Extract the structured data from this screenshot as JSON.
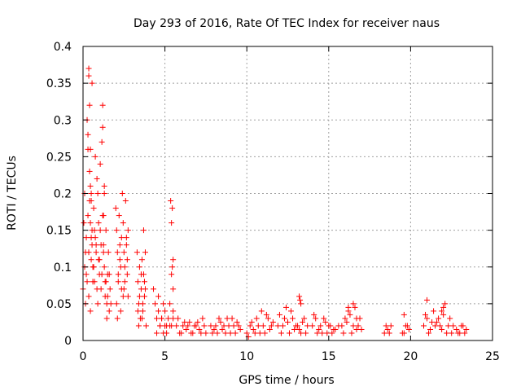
{
  "chart_data": {
    "type": "scatter",
    "title": "Day 293 of 2016, Rate Of TEC Index for receiver naus",
    "xlabel": "GPS time / hours",
    "ylabel": "ROTI / TECUs",
    "xlim": [
      0,
      25
    ],
    "ylim": [
      0,
      0.4
    ],
    "x_ticks": [
      0,
      5,
      10,
      15,
      20,
      25
    ],
    "x_tick_labels": [
      "0",
      "5",
      "10",
      "15",
      "20",
      "25"
    ],
    "y_ticks": [
      0,
      0.05,
      0.1,
      0.15,
      0.2,
      0.25,
      0.3,
      0.35,
      0.4
    ],
    "y_tick_labels": [
      "0",
      "0.05",
      "0.1",
      "0.15",
      "0.2",
      "0.25",
      "0.3",
      "0.35",
      "0.4"
    ],
    "grid": true,
    "marker": "plus",
    "marker_color": "#ff0000",
    "series": [
      {
        "x": [
          0.0,
          0.05,
          0.1,
          0.15,
          0.2,
          0.25,
          0.3,
          0.35,
          0.4,
          0.45,
          0.5,
          0.55,
          0.6,
          0.65,
          0.7,
          0.75,
          0.8,
          0.85,
          0.9,
          0.95,
          1.0,
          1.05,
          1.1,
          1.15,
          1.2,
          1.25,
          1.3,
          1.35,
          1.4,
          1.45,
          1.5,
          1.55,
          1.6,
          1.65,
          1.7,
          0.1,
          0.2,
          0.3,
          0.4,
          0.5,
          0.6,
          0.7,
          0.8,
          0.9,
          1.0,
          1.1,
          1.2,
          1.3,
          1.4,
          1.5,
          1.6,
          0.15,
          0.25,
          0.35,
          0.45,
          0.55,
          0.65,
          0.75,
          0.85,
          0.95,
          1.05,
          1.15,
          1.25,
          1.35,
          1.45,
          0.3,
          0.35,
          0.4,
          0.5,
          1.2,
          1.3,
          0.45,
          0.5,
          0.55,
          1.25,
          0.35,
          0.45,
          2.0,
          2.05,
          2.1,
          2.15,
          2.2,
          2.25,
          2.3,
          2.35,
          2.4,
          2.45,
          2.5,
          2.55,
          2.6,
          2.65,
          2.7,
          2.75,
          2.05,
          2.15,
          2.25,
          2.35,
          2.45,
          2.55,
          2.65,
          2.75,
          2.1,
          2.3,
          2.5,
          2.7,
          3.3,
          3.35,
          3.4,
          3.45,
          3.5,
          3.55,
          3.6,
          3.65,
          3.7,
          3.75,
          3.8,
          3.85,
          3.35,
          3.45,
          3.55,
          3.65,
          3.75,
          3.4,
          3.6,
          3.8,
          3.7,
          4.3,
          4.4,
          4.5,
          4.6,
          4.7,
          4.8,
          4.9,
          5.0,
          5.1,
          5.2,
          5.3,
          5.4,
          5.5,
          4.5,
          4.7,
          4.9,
          5.1,
          5.3,
          5.5,
          4.6,
          4.8,
          5.0,
          5.35,
          5.4,
          5.45,
          5.4,
          5.45,
          5.5,
          5.5,
          5.7,
          5.9,
          6.1,
          6.3,
          6.5,
          6.7,
          6.9,
          7.1,
          7.3,
          7.5,
          5.8,
          6.0,
          6.2,
          6.4,
          6.6,
          6.8,
          7.0,
          7.2,
          7.4,
          7.8,
          8.0,
          8.2,
          8.4,
          8.6,
          8.8,
          9.0,
          9.2,
          9.4,
          9.6,
          7.9,
          8.1,
          8.3,
          8.5,
          8.7,
          8.9,
          9.1,
          9.3,
          9.5,
          10.0,
          10.2,
          10.4,
          10.6,
          10.8,
          11.0,
          11.2,
          11.4,
          11.6,
          10.1,
          10.3,
          10.5,
          10.7,
          10.9,
          11.1,
          11.3,
          11.5,
          11.9,
          12.1,
          12.3,
          12.5,
          12.7,
          12.9,
          13.1,
          13.3,
          13.5,
          13.7,
          12.0,
          12.2,
          12.4,
          12.6,
          12.8,
          13.0,
          13.2,
          13.4,
          13.6,
          13.2,
          13.25,
          13.3,
          14.0,
          14.2,
          14.4,
          14.6,
          14.8,
          15.0,
          15.2,
          15.4,
          15.6,
          14.1,
          14.3,
          14.5,
          14.7,
          14.9,
          15.1,
          15.3,
          15.8,
          16.0,
          16.2,
          16.4,
          16.6,
          16.8,
          17.0,
          15.9,
          16.1,
          16.3,
          16.5,
          16.7,
          16.9,
          16.2,
          16.5,
          16.7,
          18.4,
          18.6,
          18.8,
          18.5,
          18.7,
          19.5,
          19.7,
          19.9,
          19.6,
          19.8,
          19.6,
          20.8,
          21.0,
          21.2,
          21.4,
          21.6,
          21.8,
          22.0,
          22.2,
          22.4,
          22.6,
          20.9,
          21.1,
          21.3,
          21.5,
          21.7,
          21.9,
          22.1,
          22.3,
          22.5,
          21.0,
          21.9,
          22.0,
          22.8,
          23.0,
          23.2,
          23.4,
          22.9,
          23.1,
          23.3
        ],
        "y": [
          0.07,
          0.16,
          0.2,
          0.12,
          0.09,
          0.3,
          0.26,
          0.37,
          0.32,
          0.21,
          0.14,
          0.35,
          0.1,
          0.18,
          0.08,
          0.25,
          0.13,
          0.22,
          0.05,
          0.16,
          0.11,
          0.24,
          0.07,
          0.27,
          0.32,
          0.13,
          0.2,
          0.06,
          0.15,
          0.03,
          0.09,
          0.12,
          0.04,
          0.07,
          0.05,
          0.1,
          0.14,
          0.17,
          0.19,
          0.11,
          0.08,
          0.15,
          0.12,
          0.2,
          0.09,
          0.13,
          0.17,
          0.1,
          0.08,
          0.06,
          0.09,
          0.05,
          0.08,
          0.12,
          0.16,
          0.13,
          0.1,
          0.14,
          0.07,
          0.11,
          0.15,
          0.09,
          0.12,
          0.08,
          0.05,
          0.28,
          0.36,
          0.23,
          0.19,
          0.29,
          0.21,
          0.26,
          0.2,
          0.15,
          0.17,
          0.06,
          0.04,
          0.18,
          0.15,
          0.12,
          0.09,
          0.17,
          0.13,
          0.1,
          0.07,
          0.2,
          0.16,
          0.12,
          0.08,
          0.19,
          0.14,
          0.11,
          0.06,
          0.05,
          0.08,
          0.11,
          0.14,
          0.06,
          0.1,
          0.13,
          0.15,
          0.03,
          0.04,
          0.07,
          0.09,
          0.12,
          0.08,
          0.05,
          0.1,
          0.03,
          0.07,
          0.11,
          0.04,
          0.09,
          0.06,
          0.12,
          0.02,
          0.04,
          0.06,
          0.09,
          0.05,
          0.08,
          0.02,
          0.03,
          0.07,
          0.15,
          0.07,
          0.05,
          0.03,
          0.04,
          0.02,
          0.03,
          0.01,
          0.04,
          0.02,
          0.03,
          0.05,
          0.02,
          0.03,
          0.01,
          0.02,
          0.05,
          0.01,
          0.02,
          0.04,
          0.06,
          0.03,
          0.02,
          0.19,
          0.16,
          0.18,
          0.09,
          0.1,
          0.07,
          0.11,
          0.02,
          0.01,
          0.02,
          0.015,
          0.025,
          0.01,
          0.02,
          0.015,
          0.03,
          0.01,
          0.03,
          0.01,
          0.025,
          0.02,
          0.01,
          0.02,
          0.025,
          0.01,
          0.02,
          0.02,
          0.015,
          0.01,
          0.025,
          0.02,
          0.03,
          0.01,
          0.02,
          0.025,
          0.015,
          0.01,
          0.02,
          0.03,
          0.015,
          0.01,
          0.02,
          0.03,
          0.01,
          0.02,
          0.01,
          0.02,
          0.015,
          0.03,
          0.01,
          0.02,
          0.035,
          0.015,
          0.025,
          0.005,
          0.025,
          0.01,
          0.02,
          0.04,
          0.01,
          0.03,
          0.02,
          0.02,
          0.01,
          0.03,
          0.025,
          0.04,
          0.015,
          0.02,
          0.01,
          0.03,
          0.02,
          0.035,
          0.02,
          0.045,
          0.01,
          0.03,
          0.02,
          0.015,
          0.025,
          0.01,
          0.06,
          0.055,
          0.05,
          0.02,
          0.03,
          0.015,
          0.01,
          0.025,
          0.02,
          0.01,
          0.015,
          0.02,
          0.035,
          0.01,
          0.02,
          0.03,
          0.01,
          0.02,
          0.015,
          0.02,
          0.03,
          0.04,
          0.01,
          0.045,
          0.02,
          0.015,
          0.01,
          0.025,
          0.035,
          0.02,
          0.015,
          0.03,
          0.045,
          0.05,
          0.03,
          0.01,
          0.015,
          0.02,
          0.02,
          0.01,
          0.01,
          0.02,
          0.015,
          0.035,
          0.02,
          0.01,
          0.02,
          0.03,
          0.015,
          0.04,
          0.025,
          0.02,
          0.045,
          0.01,
          0.03,
          0.02,
          0.035,
          0.01,
          0.025,
          0.02,
          0.03,
          0.015,
          0.05,
          0.02,
          0.01,
          0.055,
          0.04,
          0.035,
          0.015,
          0.01,
          0.02,
          0.015,
          0.01,
          0.02,
          0.01
        ]
      }
    ]
  }
}
